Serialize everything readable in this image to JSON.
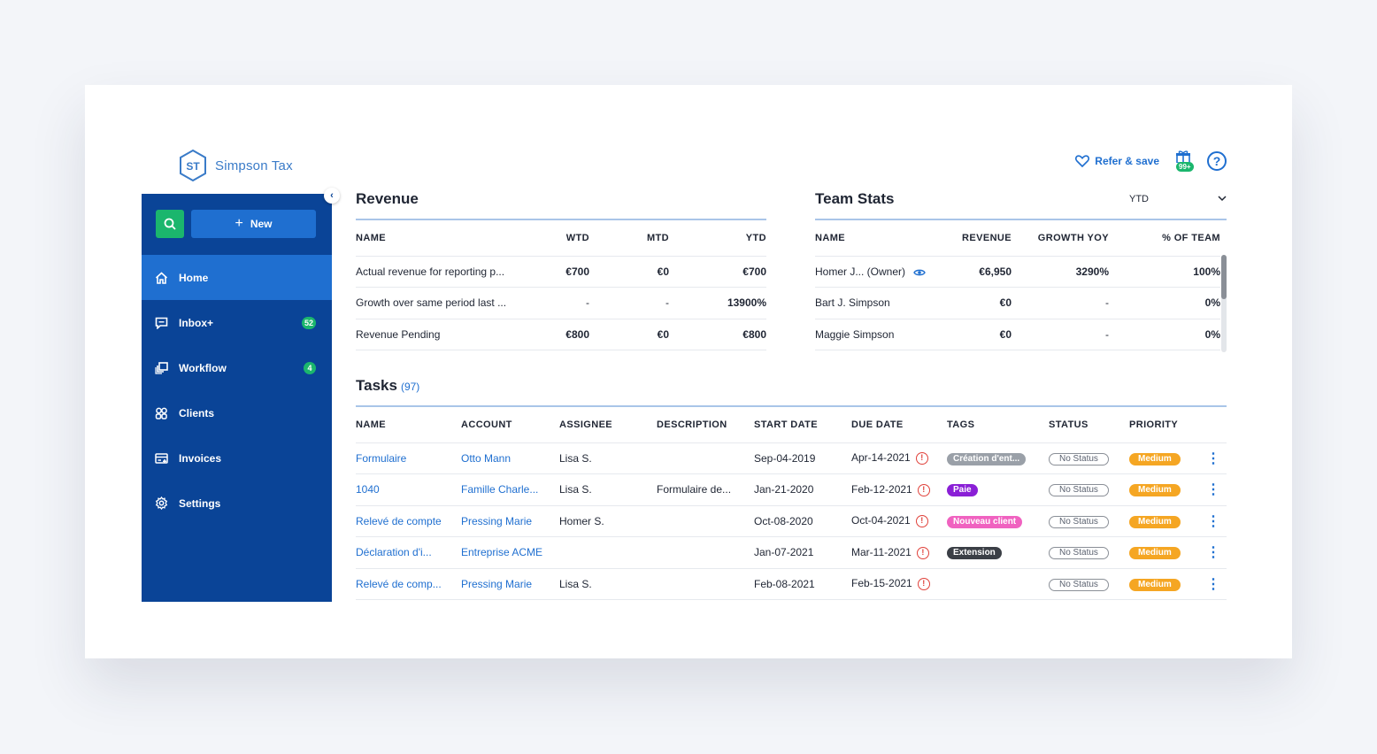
{
  "brand": {
    "initials": "ST",
    "name": "Simpson Tax"
  },
  "header": {
    "refer_label": "Refer & save",
    "gift_badge": "99+",
    "help_label": "?"
  },
  "sidebar": {
    "new_label": "New",
    "items": [
      {
        "label": "Home",
        "icon": "home-icon",
        "active": true
      },
      {
        "label": "Inbox+",
        "icon": "inbox-icon",
        "badge": "52"
      },
      {
        "label": "Workflow",
        "icon": "workflow-icon",
        "badge": "4"
      },
      {
        "label": "Clients",
        "icon": "clients-icon"
      },
      {
        "label": "Invoices",
        "icon": "invoices-icon"
      },
      {
        "label": "Settings",
        "icon": "gear-icon"
      }
    ]
  },
  "revenue": {
    "title": "Revenue",
    "columns": [
      "NAME",
      "WTD",
      "MTD",
      "YTD"
    ],
    "rows": [
      [
        "Actual revenue for reporting p...",
        "€700",
        "€0",
        "€700"
      ],
      [
        "Growth over same period last ...",
        "-",
        "-",
        "13900%"
      ],
      [
        "Revenue Pending",
        "€800",
        "€0",
        "€800"
      ]
    ]
  },
  "team_stats": {
    "title": "Team Stats",
    "period": "YTD",
    "columns": [
      "NAME",
      "REVENUE",
      "GROWTH YOY",
      "% OF TEAM"
    ],
    "rows": [
      [
        "Homer J... (Owner)",
        "€6,950",
        "3290%",
        "100%"
      ],
      [
        "Bart J. Simpson",
        "€0",
        "-",
        "0%"
      ],
      [
        "Maggie Simpson",
        "€0",
        "-",
        "0%"
      ]
    ]
  },
  "tasks": {
    "title": "Tasks",
    "count": "(97)",
    "columns": [
      "NAME",
      "ACCOUNT",
      "ASSIGNEE",
      "DESCRIPTION",
      "START DATE",
      "DUE DATE",
      "TAGS",
      "STATUS",
      "PRIORITY"
    ],
    "rows": [
      {
        "name": "Formulaire",
        "account": "Otto Mann",
        "assignee": "Lisa S.",
        "description": "",
        "start": "Sep-04-2019",
        "due": "Apr-14-2021",
        "tag": "Création d'ent...",
        "tag_color": "#9aa0a8",
        "status": "No Status",
        "priority": "Medium"
      },
      {
        "name": "1040",
        "account": "Famille Charle...",
        "assignee": "Lisa S.",
        "description": "Formulaire de...",
        "start": "Jan-21-2020",
        "due": "Feb-12-2021",
        "tag": "Paie",
        "tag_color": "#8a1fd6",
        "status": "No Status",
        "priority": "Medium"
      },
      {
        "name": "Relevé de compte",
        "account": "Pressing Marie",
        "assignee": "Homer S.",
        "description": "",
        "start": "Oct-08-2020",
        "due": "Oct-04-2021",
        "tag": "Nouveau client",
        "tag_color": "#f062c0",
        "status": "No Status",
        "priority": "Medium"
      },
      {
        "name": "Déclaration d'i...",
        "account": "Entreprise ACME",
        "assignee": "",
        "description": "",
        "start": "Jan-07-2021",
        "due": "Mar-11-2021",
        "tag": "Extension",
        "tag_color": "#3b3f46",
        "status": "No Status",
        "priority": "Medium"
      },
      {
        "name": "Relevé de comp...",
        "account": "Pressing Marie",
        "assignee": "Lisa S.",
        "description": "",
        "start": "Feb-08-2021",
        "due": "Feb-15-2021",
        "tag": "",
        "tag_color": "",
        "status": "No Status",
        "priority": "Medium"
      }
    ]
  },
  "colors": {
    "sidebar": "#0a4497",
    "accent": "#1f6fd0",
    "green": "#1bb66d",
    "medium": "#f5a623",
    "alert": "#e0413a"
  }
}
